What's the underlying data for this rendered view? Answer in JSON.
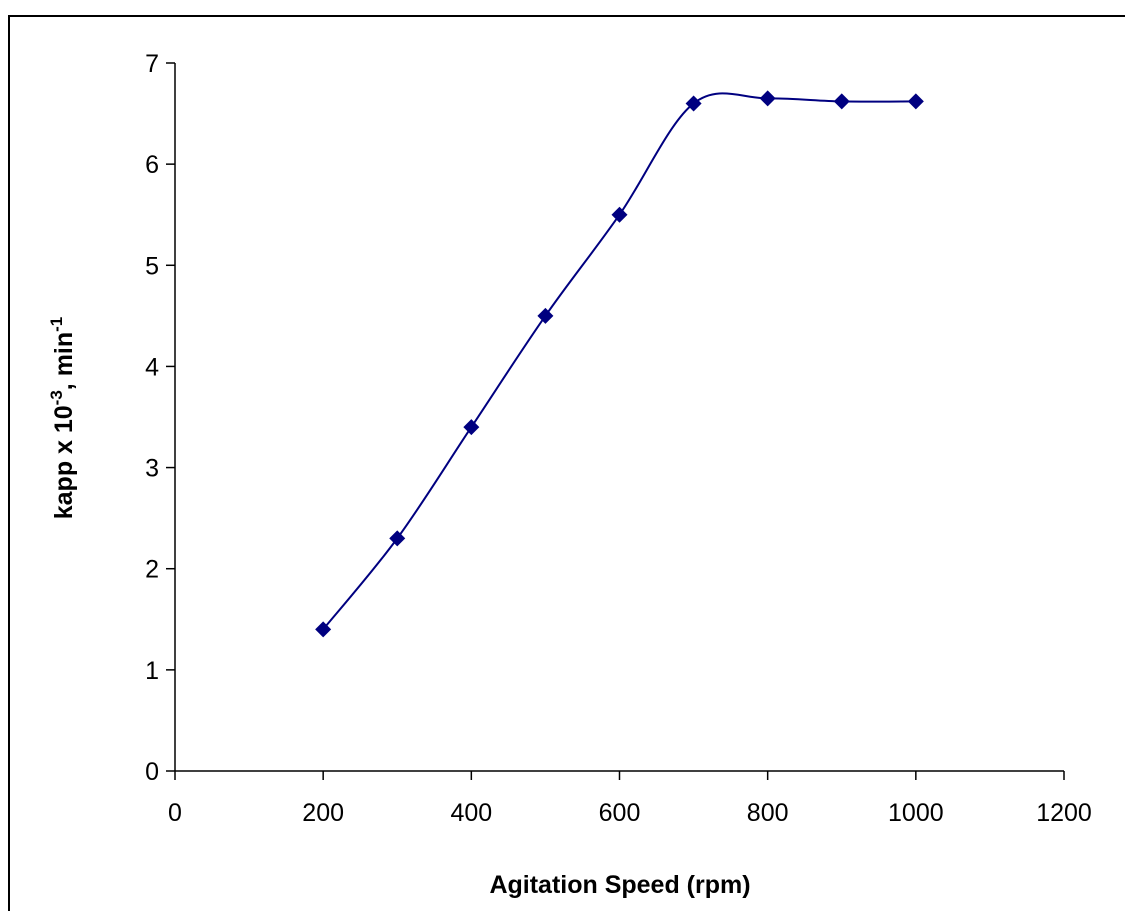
{
  "chart_data": {
    "type": "line",
    "title": "",
    "xlabel": "Agitation Speed (rpm)",
    "ylabel": {
      "base": "kapp x 10",
      "exp1": "-3",
      "mid": ", min",
      "exp2": "-1"
    },
    "xlim": [
      0,
      1200
    ],
    "ylim": [
      0,
      7
    ],
    "x_ticks": [
      0,
      200,
      400,
      600,
      800,
      1000,
      1200
    ],
    "y_ticks": [
      0,
      1,
      2,
      3,
      4,
      5,
      6,
      7
    ],
    "grid": false,
    "legend": "none",
    "marker": "diamond",
    "smooth": true,
    "series": [
      {
        "x": [
          200,
          300,
          400,
          500,
          600,
          700,
          800,
          900,
          1000
        ],
        "y": [
          1.4,
          2.3,
          3.4,
          4.5,
          5.5,
          6.6,
          6.65,
          6.62,
          6.62
        ]
      }
    ],
    "colors": {
      "line": "#000080",
      "marker": "#000080",
      "axis": "#000000"
    }
  }
}
